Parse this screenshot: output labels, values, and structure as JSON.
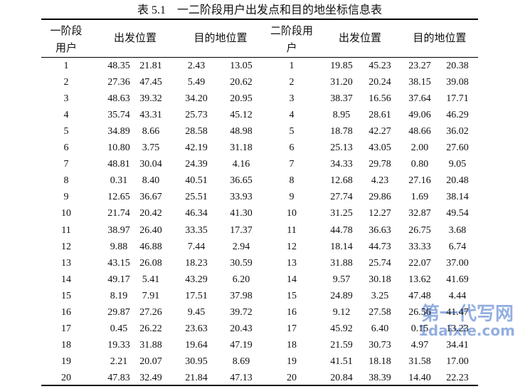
{
  "title": "表 5.1　一二阶段用户出发点和目的地坐标信息表",
  "header": [
    "一阶段用户",
    "出发位置",
    "目的地位置",
    "二阶段用户",
    "出发位置",
    "目的地位置"
  ],
  "rows": [
    [
      "1",
      "48.35",
      "21.81",
      "2.43",
      "13.05",
      "1",
      "19.85",
      "45.23",
      "23.27",
      "20.38"
    ],
    [
      "2",
      "27.36",
      "47.45",
      "5.49",
      "20.62",
      "2",
      "31.20",
      "20.24",
      "38.15",
      "39.08"
    ],
    [
      "3",
      "48.63",
      "39.32",
      "34.20",
      "20.95",
      "3",
      "38.37",
      "16.56",
      "37.64",
      "17.71"
    ],
    [
      "4",
      "35.74",
      "43.31",
      "25.73",
      "45.12",
      "4",
      "8.95",
      "28.61",
      "49.06",
      "46.29"
    ],
    [
      "5",
      "34.89",
      "8.66",
      "28.58",
      "48.98",
      "5",
      "18.78",
      "42.27",
      "48.66",
      "36.02"
    ],
    [
      "6",
      "10.80",
      "3.75",
      "42.19",
      "31.18",
      "6",
      "25.13",
      "43.05",
      "2.00",
      "27.60"
    ],
    [
      "7",
      "48.81",
      "30.04",
      "24.39",
      "4.16",
      "7",
      "34.33",
      "29.78",
      "0.80",
      "9.05"
    ],
    [
      "8",
      "0.31",
      "8.40",
      "40.51",
      "36.65",
      "8",
      "12.68",
      "4.23",
      "27.16",
      "20.48"
    ],
    [
      "9",
      "12.65",
      "36.67",
      "25.51",
      "33.93",
      "9",
      "27.74",
      "29.86",
      "1.69",
      "38.14"
    ],
    [
      "10",
      "21.74",
      "20.42",
      "46.34",
      "41.30",
      "10",
      "31.25",
      "12.27",
      "32.87",
      "49.54"
    ],
    [
      "11",
      "38.97",
      "26.40",
      "33.35",
      "17.37",
      "11",
      "44.78",
      "36.63",
      "26.75",
      "3.68"
    ],
    [
      "12",
      "9.88",
      "46.88",
      "7.44",
      "2.94",
      "12",
      "18.14",
      "44.73",
      "33.33",
      "6.74"
    ],
    [
      "13",
      "43.15",
      "26.08",
      "18.23",
      "30.59",
      "13",
      "31.88",
      "25.74",
      "22.07",
      "37.00"
    ],
    [
      "14",
      "49.17",
      "5.41",
      "43.29",
      "6.20",
      "14",
      "9.57",
      "30.18",
      "13.62",
      "41.69"
    ],
    [
      "15",
      "8.19",
      "7.91",
      "17.51",
      "37.98",
      "15",
      "24.89",
      "3.25",
      "47.48",
      "4.44"
    ],
    [
      "16",
      "29.87",
      "27.26",
      "9.45",
      "39.72",
      "16",
      "9.12",
      "27.58",
      "26.56",
      "41.47"
    ],
    [
      "17",
      "0.45",
      "26.22",
      "23.63",
      "20.43",
      "17",
      "45.92",
      "6.40",
      "0.15",
      "13.23"
    ],
    [
      "18",
      "19.33",
      "31.88",
      "19.64",
      "47.19",
      "18",
      "21.59",
      "30.73",
      "4.97",
      "34.41"
    ],
    [
      "19",
      "2.21",
      "20.07",
      "30.95",
      "8.69",
      "19",
      "41.51",
      "18.18",
      "31.58",
      "17.00"
    ],
    [
      "20",
      "47.83",
      "32.49",
      "21.84",
      "47.13",
      "20",
      "20.84",
      "38.39",
      "14.40",
      "22.23"
    ]
  ],
  "watermark": [
    "第一代写网",
    "1daixie.com"
  ]
}
